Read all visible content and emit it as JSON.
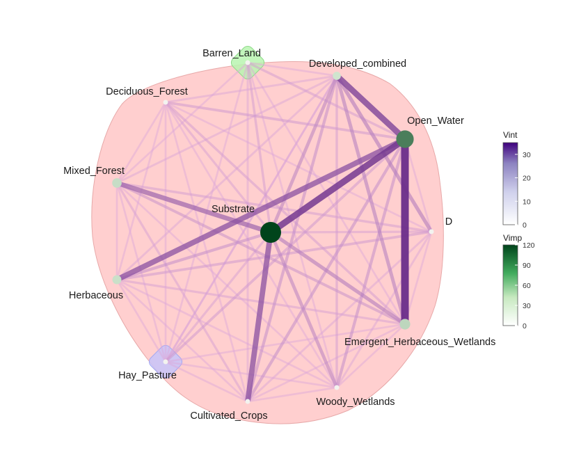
{
  "chart_data": {
    "type": "network",
    "nodes": [
      {
        "name": "Barren_Land",
        "vimp": 0,
        "cluster": "green"
      },
      {
        "name": "Developed_combined",
        "vimp": 5
      },
      {
        "name": "Deciduous_Forest",
        "vimp": 0
      },
      {
        "name": "Open_Water",
        "vimp": 75
      },
      {
        "name": "Mixed_Forest",
        "vimp": 10
      },
      {
        "name": "Substrate",
        "vimp": 120
      },
      {
        "name": "D",
        "vimp": 0
      },
      {
        "name": "Herbaceous",
        "vimp": 8
      },
      {
        "name": "Emergent_Herbaceous_Wetlands",
        "vimp": 15
      },
      {
        "name": "Hay_Pasture",
        "vimp": 0,
        "cluster": "blue"
      },
      {
        "name": "Woody_Wetlands",
        "vimp": 0
      },
      {
        "name": "Cultivated_Crops",
        "vimp": 0
      }
    ],
    "edges": [
      {
        "source": "Open_Water",
        "target": "Emergent_Herbaceous_Wetlands",
        "vint": 35
      },
      {
        "source": "Substrate",
        "target": "Open_Water",
        "vint": 28
      },
      {
        "source": "Developed_combined",
        "target": "Open_Water",
        "vint": 25
      },
      {
        "source": "Herbaceous",
        "target": "Open_Water",
        "vint": 22
      },
      {
        "source": "Substrate",
        "target": "Cultivated_Crops",
        "vint": 22
      },
      {
        "source": "Mixed_Forest",
        "target": "Substrate",
        "vint": 18
      },
      {
        "source": "Developed_combined",
        "target": "D",
        "vint": 12
      },
      {
        "source": "Substrate",
        "target": "Emergent_Herbaceous_Wetlands",
        "vint": 12
      },
      {
        "source": "Developed_combined",
        "target": "Emergent_Herbaceous_Wetlands",
        "vint": 11
      },
      {
        "source": "Substrate",
        "target": "Developed_combined",
        "vint": 10
      },
      {
        "source": "Substrate",
        "target": "Woody_Wetlands",
        "vint": 10
      },
      {
        "source": "Substrate",
        "target": "Herbaceous",
        "vint": 8
      },
      {
        "source": "Open_Water",
        "target": "Cultivated_Crops",
        "vint": 8
      },
      {
        "source": "Open_Water",
        "target": "Woody_Wetlands",
        "vint": 8
      },
      {
        "source": "Developed_combined",
        "target": "Cultivated_Crops",
        "vint": 8
      },
      {
        "source": "Mixed_Forest",
        "target": "Emergent_Herbaceous_Wetlands",
        "vint": 7
      },
      {
        "source": "Herbaceous",
        "target": "D",
        "vint": 6
      },
      {
        "source": "Hay_Pasture",
        "target": "Open_Water",
        "vint": 6
      },
      {
        "source": "Deciduous_Forest",
        "target": "Open_Water",
        "vint": 6
      },
      {
        "source": "Barren_Land",
        "target": "Substrate",
        "vint": 5
      },
      {
        "source": "Deciduous_Forest",
        "target": "Emergent_Herbaceous_Wetlands",
        "vint": 5
      },
      {
        "source": "Developed_combined",
        "target": "Woody_Wetlands",
        "vint": 5
      },
      {
        "source": "Mixed_Forest",
        "target": "D",
        "vint": 5
      },
      {
        "source": "Barren_Land",
        "target": "Open_Water",
        "vint": 5
      },
      {
        "source": "Substrate",
        "target": "D",
        "vint": 4
      },
      {
        "source": "Substrate",
        "target": "Hay_Pasture",
        "vint": 4
      },
      {
        "source": "Herbaceous",
        "target": "Emergent_Herbaceous_Wetlands",
        "vint": 4
      },
      {
        "source": "Deciduous_Forest",
        "target": "Substrate",
        "vint": 4
      },
      {
        "source": "Mixed_Forest",
        "target": "Cultivated_Crops",
        "vint": 4
      },
      {
        "source": "Barren_Land",
        "target": "Cultivated_Crops",
        "vint": 3
      },
      {
        "source": "Mixed_Forest",
        "target": "Developed_combined",
        "vint": 3
      },
      {
        "source": "Deciduous_Forest",
        "target": "Developed_combined",
        "vint": 3
      },
      {
        "source": "Herbaceous",
        "target": "Developed_combined",
        "vint": 3
      },
      {
        "source": "Hay_Pasture",
        "target": "Developed_combined",
        "vint": 3
      },
      {
        "source": "D",
        "target": "Cultivated_Crops",
        "vint": 3
      },
      {
        "source": "Woody_Wetlands",
        "target": "D",
        "vint": 3
      },
      {
        "source": "Hay_Pasture",
        "target": "Woody_Wetlands",
        "vint": 2
      },
      {
        "source": "Herbaceous",
        "target": "Woody_Wetlands",
        "vint": 2
      },
      {
        "source": "Cultivated_Crops",
        "target": "Woody_Wetlands",
        "vint": 2
      },
      {
        "source": "Deciduous_Forest",
        "target": "Herbaceous",
        "vint": 2
      },
      {
        "source": "Mixed_Forest",
        "target": "Herbaceous",
        "vint": 2
      },
      {
        "source": "Mixed_Forest",
        "target": "Woody_Wetlands",
        "vint": 2
      },
      {
        "source": "Deciduous_Forest",
        "target": "Mixed_Forest",
        "vint": 2
      },
      {
        "source": "Deciduous_Forest",
        "target": "Cultivated_Crops",
        "vint": 2
      },
      {
        "source": "Barren_Land",
        "target": "Woody_Wetlands",
        "vint": 2
      },
      {
        "source": "Barren_Land",
        "target": "Hay_Pasture",
        "vint": 2
      },
      {
        "source": "Barren_Land",
        "target": "Mixed_Forest",
        "vint": 2
      },
      {
        "source": "Barren_Land",
        "target": "Developed_combined",
        "vint": 2
      },
      {
        "source": "Barren_Land",
        "target": "Emergent_Herbaceous_Wetlands",
        "vint": 2
      },
      {
        "source": "Deciduous_Forest",
        "target": "D",
        "vint": 2
      },
      {
        "source": "Deciduous_Forest",
        "target": "Woody_Wetlands",
        "vint": 2
      },
      {
        "source": "Deciduous_Forest",
        "target": "Hay_Pasture",
        "vint": 2
      },
      {
        "source": "Herbaceous",
        "target": "Hay_Pasture",
        "vint": 2
      },
      {
        "source": "Herbaceous",
        "target": "Cultivated_Crops",
        "vint": 2
      },
      {
        "source": "Mixed_Forest",
        "target": "Hay_Pasture",
        "vint": 2
      },
      {
        "source": "Open_Water",
        "target": "D",
        "vint": 2
      },
      {
        "source": "D",
        "target": "Emergent_Herbaceous_Wetlands",
        "vint": 2
      },
      {
        "source": "Emergent_Herbaceous_Wetlands",
        "target": "Woody_Wetlands",
        "vint": 2
      },
      {
        "source": "Emergent_Herbaceous_Wetlands",
        "target": "Cultivated_Crops",
        "vint": 2
      },
      {
        "source": "Hay_Pasture",
        "target": "Cultivated_Crops",
        "vint": 2
      },
      {
        "source": "Hay_Pasture",
        "target": "Emergent_Herbaceous_Wetlands",
        "vint": 2
      },
      {
        "source": "Developed_combined",
        "target": "Hay_Pasture",
        "vint": 2
      }
    ],
    "legends": [
      {
        "title": "Vint",
        "ticks": [
          "0",
          "10",
          "20",
          "30"
        ],
        "range": [
          0,
          35
        ],
        "colors": [
          "#ffffff",
          "#bcbddc",
          "#8c82c0",
          "#3f007d"
        ]
      },
      {
        "title": "Vimp",
        "ticks": [
          "0",
          "30",
          "60",
          "90",
          "120"
        ],
        "range": [
          0,
          120
        ],
        "colors": [
          "#ffffff",
          "#a1d99b",
          "#41ab5d",
          "#00441b"
        ]
      }
    ],
    "colors": {
      "hull_main": "#ffb6b6",
      "hull_green": "#b9f5b0",
      "hull_blue": "#c0c3ff",
      "edge": "#6a2d8a",
      "node_low": "#d9ecd6",
      "node_high": "#00441b"
    }
  }
}
